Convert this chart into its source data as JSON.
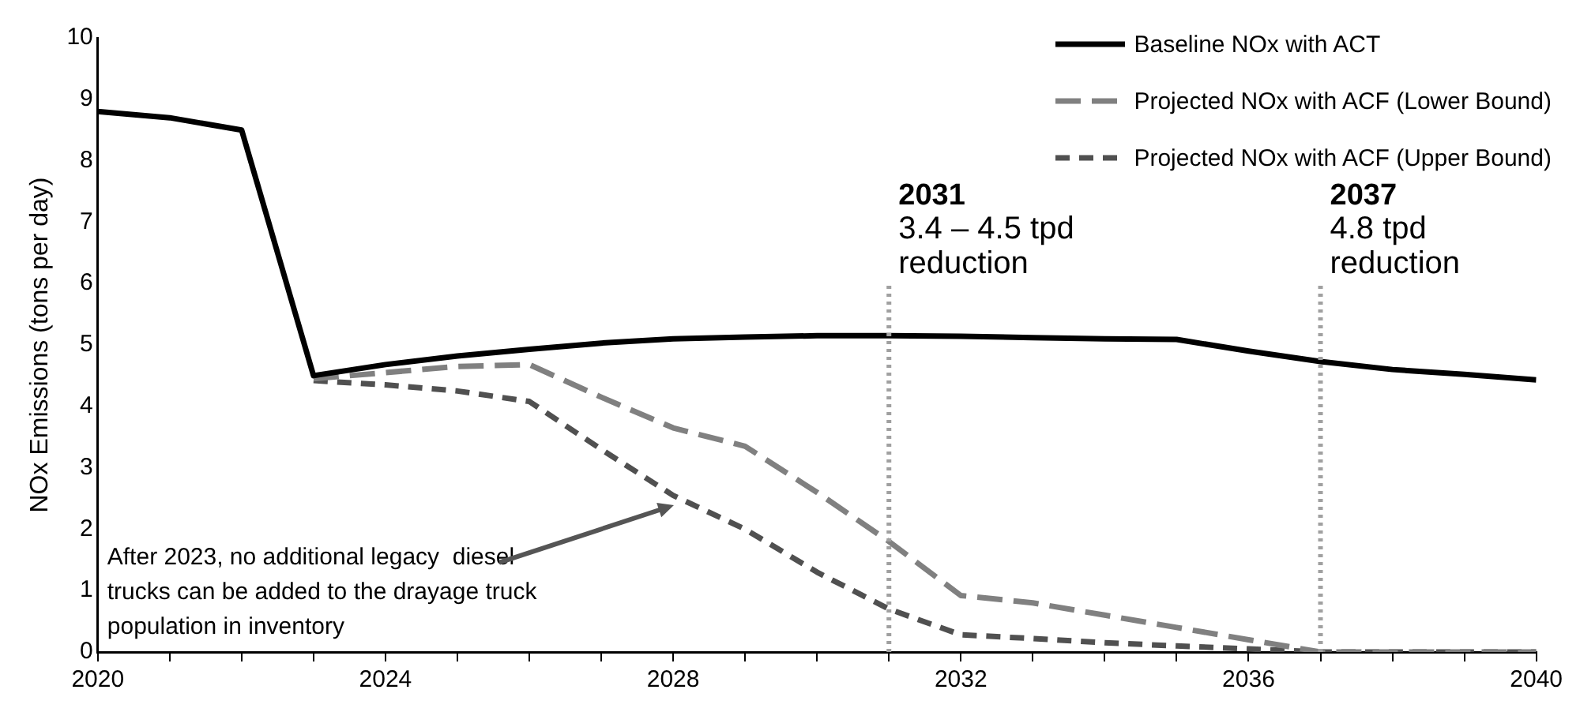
{
  "chart_data": {
    "type": "line",
    "ylabel": "NOx Emissions (tons per day)",
    "x": [
      2020,
      2021,
      2022,
      2023,
      2024,
      2025,
      2026,
      2027,
      2028,
      2029,
      2030,
      2031,
      2032,
      2033,
      2034,
      2035,
      2036,
      2037,
      2038,
      2039,
      2040
    ],
    "series": [
      {
        "name": "Baseline NOx with ACT",
        "color": "#000000",
        "line_style": "solid",
        "values": [
          8.8,
          8.7,
          8.5,
          4.5,
          4.68,
          4.82,
          4.93,
          5.03,
          5.1,
          5.13,
          5.15,
          5.15,
          5.14,
          5.12,
          5.1,
          5.09,
          4.9,
          4.73,
          4.6,
          4.52,
          4.43
        ]
      },
      {
        "name": "Projected NOx with ACF (Lower Bound)",
        "color": "#808080",
        "line_style": "dashed",
        "x": [
          2023,
          2024,
          2025,
          2026,
          2027,
          2028,
          2029,
          2030,
          2031,
          2032,
          2033,
          2034,
          2035,
          2036,
          2037,
          2038,
          2039,
          2040
        ],
        "values": [
          4.45,
          4.55,
          4.65,
          4.68,
          4.15,
          3.65,
          3.35,
          2.6,
          1.8,
          0.92,
          0.8,
          0.6,
          0.4,
          0.2,
          0,
          0,
          0,
          0
        ]
      },
      {
        "name": "Projected NOx with ACF (Upper Bound)",
        "color": "#505050",
        "line_style": "dashed",
        "x": [
          2023,
          2024,
          2025,
          2026,
          2027,
          2028,
          2029,
          2030,
          2031,
          2032,
          2033,
          2034,
          2035,
          2036,
          2037,
          2038,
          2039,
          2040
        ],
        "values": [
          4.42,
          4.35,
          4.25,
          4.08,
          3.3,
          2.55,
          2.0,
          1.3,
          0.7,
          0.28,
          0.22,
          0.15,
          0.1,
          0.05,
          0,
          0,
          0,
          0
        ]
      }
    ],
    "xlim": [
      2020,
      2040
    ],
    "xticks": [
      2020,
      {
        "value": 2021,
        "label": null
      },
      {
        "value": 2022,
        "label": null
      },
      {
        "value": 2023,
        "label": null
      },
      2024,
      {
        "value": 2025,
        "label": null
      },
      {
        "value": 2026,
        "label": null
      },
      {
        "value": 2027,
        "label": null
      },
      2028,
      {
        "value": 2029,
        "label": null
      },
      {
        "value": 2030,
        "label": null
      },
      {
        "value": 2031,
        "label": null
      },
      2032,
      {
        "value": 2033,
        "label": null
      },
      {
        "value": 2034,
        "label": null
      },
      {
        "value": 2035,
        "label": null
      },
      2036,
      {
        "value": 2037,
        "label": null
      },
      {
        "value": 2038,
        "label": null
      },
      {
        "value": 2039,
        "label": null
      },
      2040
    ],
    "ylim": [
      0,
      10
    ],
    "yticks": [
      0,
      1,
      2,
      3,
      4,
      5,
      6,
      7,
      8,
      9,
      10
    ],
    "ref_lines": [
      {
        "axis": "x",
        "value": 2031,
        "label": "2031",
        "color": "#a0a0a0",
        "line_style": "dotted"
      },
      {
        "axis": "x",
        "value": 2037,
        "label": "2037",
        "color": "#a0a0a0",
        "line_style": "dotted"
      }
    ],
    "annotations": [
      "3.4 – 4.5 tpd reduction",
      "4.8 tpd reduction",
      {
        "text": "After 2023, no additional legacy  diesel trucks can be added to the drayage truck population in inventory",
        "x": 2028,
        "y": 2.4
      }
    ],
    "grid": false,
    "marker": "none",
    "legend": "top right"
  }
}
